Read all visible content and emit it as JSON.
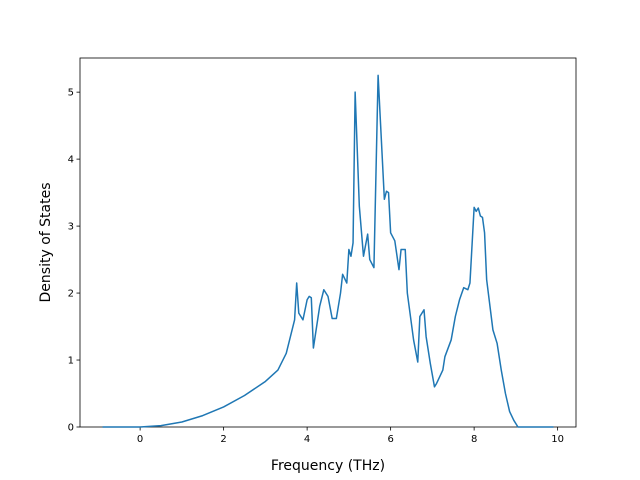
{
  "chart_data": {
    "type": "line",
    "xlabel": "Frequency (THz)",
    "ylabel": "Density of States",
    "x": [
      -0.9,
      0,
      0.5,
      1,
      1.5,
      2,
      2.5,
      3,
      3.3,
      3.5,
      3.6,
      3.7,
      3.75,
      3.8,
      3.9,
      4.0,
      4.05,
      4.1,
      4.15,
      4.3,
      4.4,
      4.5,
      4.6,
      4.7,
      4.8,
      4.85,
      4.95,
      5.0,
      5.05,
      5.1,
      5.15,
      5.25,
      5.35,
      5.45,
      5.5,
      5.6,
      5.7,
      5.85,
      5.9,
      5.95,
      6.0,
      6.1,
      6.2,
      6.25,
      6.35,
      6.4,
      6.55,
      6.65,
      6.7,
      6.8,
      6.85,
      6.95,
      7.05,
      7.1,
      7.25,
      7.3,
      7.45,
      7.55,
      7.65,
      7.75,
      7.85,
      7.9,
      8.0,
      8.05,
      8.1,
      8.15,
      8.2,
      8.25,
      8.3,
      8.45,
      8.55,
      8.65,
      8.75,
      8.85,
      8.95,
      9.05,
      9.9
    ],
    "series": [
      {
        "color": "#1f77b4",
        "values": [
          0,
          0,
          0.02,
          0.075,
          0.17,
          0.3,
          0.47,
          0.68,
          0.85,
          1.1,
          1.35,
          1.6,
          2.15,
          1.7,
          1.6,
          1.9,
          1.95,
          1.93,
          1.18,
          1.8,
          2.05,
          1.95,
          1.62,
          1.62,
          2.0,
          2.28,
          2.15,
          2.65,
          2.55,
          2.75,
          5.0,
          3.3,
          2.55,
          2.88,
          2.5,
          2.38,
          5.25,
          3.4,
          3.52,
          3.5,
          2.9,
          2.78,
          2.35,
          2.65,
          2.65,
          2.0,
          1.3,
          0.97,
          1.65,
          1.75,
          1.35,
          0.95,
          0.6,
          0.65,
          0.85,
          1.05,
          1.3,
          1.65,
          1.9,
          2.08,
          2.05,
          2.15,
          3.28,
          3.22,
          3.27,
          3.15,
          3.13,
          2.9,
          2.2,
          1.45,
          1.25,
          0.85,
          0.5,
          0.23,
          0.1,
          0,
          0
        ]
      }
    ],
    "xlim": [
      -1.44,
      10.44
    ],
    "ylim": [
      0,
      5.51
    ],
    "xticks": [
      0,
      2,
      4,
      6,
      8,
      10
    ],
    "yticks": [
      0,
      1,
      2,
      3,
      4,
      5
    ]
  }
}
